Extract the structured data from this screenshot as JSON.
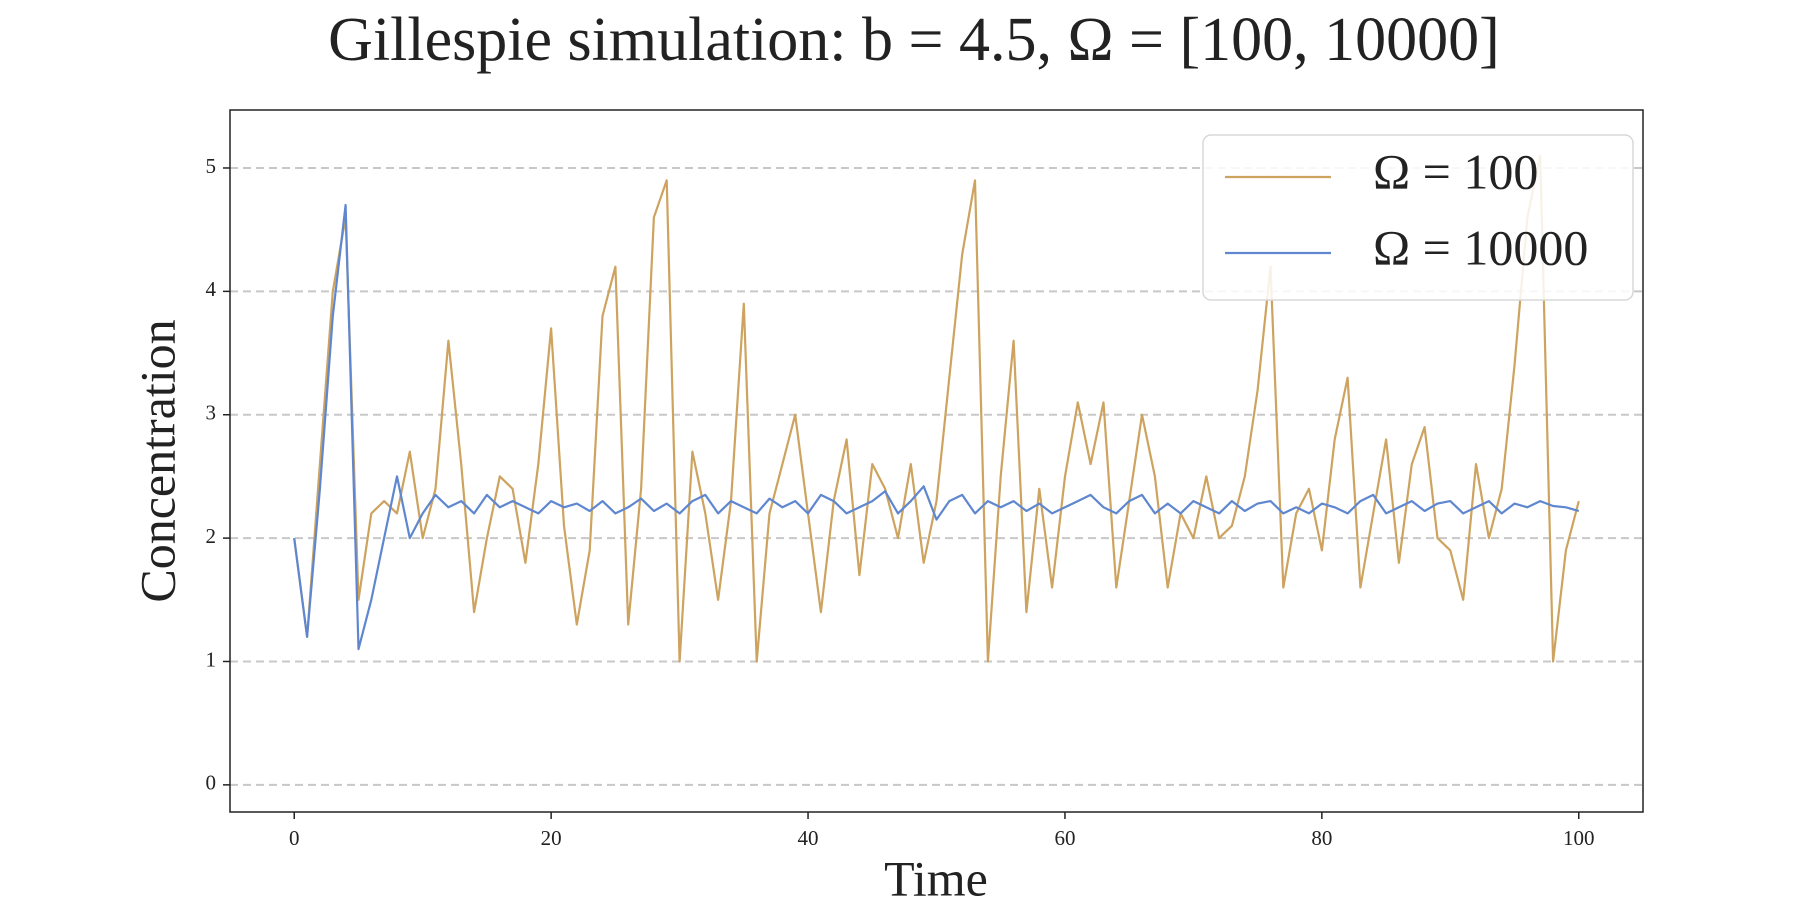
{
  "chart_data": {
    "type": "line",
    "title": "Gillespie simulation: b = 4.5, Ω = [100, 10000]",
    "xlabel": "Time",
    "ylabel": "Concentration",
    "x": [
      0,
      1,
      2,
      3,
      4,
      5,
      6,
      7,
      8,
      9,
      10,
      11,
      12,
      13,
      14,
      15,
      16,
      17,
      18,
      19,
      20,
      21,
      22,
      23,
      24,
      25,
      26,
      27,
      28,
      29,
      30,
      31,
      32,
      33,
      34,
      35,
      36,
      37,
      38,
      39,
      40,
      41,
      42,
      43,
      44,
      45,
      46,
      47,
      48,
      49,
      50,
      51,
      52,
      53,
      54,
      55,
      56,
      57,
      58,
      59,
      60,
      61,
      62,
      63,
      64,
      65,
      66,
      67,
      68,
      69,
      70,
      71,
      72,
      73,
      74,
      75,
      76,
      77,
      78,
      79,
      80,
      81,
      82,
      83,
      84,
      85,
      86,
      87,
      88,
      89,
      90,
      91,
      92,
      93,
      94,
      95,
      96,
      97,
      98,
      99,
      100
    ],
    "series": [
      {
        "name": "Ω = 100",
        "color": "#cda35f",
        "values": [
          2.0,
          1.2,
          2.6,
          4.0,
          4.6,
          1.5,
          2.2,
          2.3,
          2.2,
          2.7,
          2.0,
          2.4,
          3.6,
          2.6,
          1.4,
          2.0,
          2.5,
          2.4,
          1.8,
          2.6,
          3.7,
          2.1,
          1.3,
          1.9,
          3.8,
          4.2,
          1.3,
          2.4,
          4.6,
          4.9,
          1.0,
          2.7,
          2.2,
          1.5,
          2.3,
          3.9,
          1.0,
          2.2,
          2.6,
          3.0,
          2.2,
          1.4,
          2.3,
          2.8,
          1.7,
          2.6,
          2.4,
          2.0,
          2.6,
          1.8,
          2.3,
          3.3,
          4.3,
          4.9,
          1.0,
          2.5,
          3.6,
          1.4,
          2.4,
          1.6,
          2.5,
          3.1,
          2.6,
          3.1,
          1.6,
          2.3,
          3.0,
          2.5,
          1.6,
          2.2,
          2.0,
          2.5,
          2.0,
          2.1,
          2.5,
          3.2,
          4.2,
          1.6,
          2.2,
          2.4,
          1.9,
          2.8,
          3.3,
          1.6,
          2.2,
          2.8,
          1.8,
          2.6,
          2.9,
          2.0,
          1.9,
          1.5,
          2.6,
          2.0,
          2.4,
          3.4,
          4.6,
          5.1,
          1.0,
          1.9,
          2.3
        ]
      },
      {
        "name": "Ω = 10000",
        "color": "#5f87cf",
        "values": [
          2.0,
          1.2,
          2.4,
          3.8,
          4.7,
          1.1,
          1.5,
          2.0,
          2.5,
          2.0,
          2.2,
          2.35,
          2.25,
          2.3,
          2.2,
          2.35,
          2.25,
          2.3,
          2.25,
          2.2,
          2.3,
          2.25,
          2.28,
          2.22,
          2.3,
          2.2,
          2.25,
          2.32,
          2.22,
          2.28,
          2.2,
          2.3,
          2.35,
          2.2,
          2.3,
          2.25,
          2.2,
          2.32,
          2.25,
          2.3,
          2.2,
          2.35,
          2.3,
          2.2,
          2.25,
          2.3,
          2.38,
          2.2,
          2.3,
          2.42,
          2.15,
          2.3,
          2.35,
          2.2,
          2.3,
          2.25,
          2.3,
          2.22,
          2.28,
          2.2,
          2.25,
          2.3,
          2.35,
          2.25,
          2.2,
          2.3,
          2.35,
          2.2,
          2.28,
          2.2,
          2.3,
          2.25,
          2.2,
          2.3,
          2.22,
          2.28,
          2.3,
          2.2,
          2.25,
          2.2,
          2.28,
          2.25,
          2.2,
          2.3,
          2.35,
          2.2,
          2.25,
          2.3,
          2.22,
          2.28,
          2.3,
          2.2,
          2.25,
          2.3,
          2.2,
          2.28,
          2.25,
          2.3,
          2.26,
          2.25,
          2.22
        ]
      }
    ],
    "xlim": [
      -5,
      105
    ],
    "ylim": [
      -0.22,
      5.47
    ],
    "xticks": [
      0,
      20,
      40,
      60,
      80,
      100
    ],
    "yticks": [
      0,
      1,
      2,
      3,
      4,
      5
    ],
    "grid": true,
    "legend": "upper right"
  }
}
